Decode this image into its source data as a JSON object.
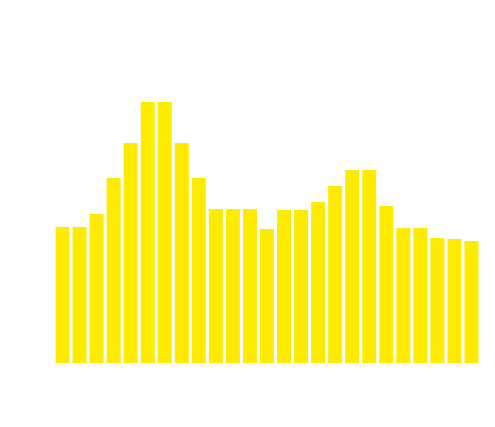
{
  "chart_data": {
    "type": "bar",
    "values": [
      136,
      136,
      149,
      185,
      220,
      261,
      261,
      220,
      185,
      154,
      154,
      154,
      134,
      153,
      153,
      161,
      177,
      193,
      193,
      157,
      135,
      135,
      125,
      124,
      122
    ],
    "color": "#ffeb00",
    "ylim": [
      0,
      300
    ]
  }
}
